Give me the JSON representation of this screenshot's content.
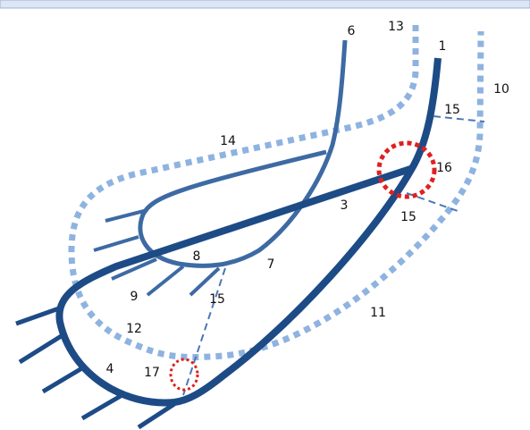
{
  "labels": [
    "6",
    "13",
    "1",
    "10",
    "15",
    "14",
    "16",
    "3",
    "15",
    "8",
    "7",
    "9",
    "15",
    "12",
    "11",
    "4",
    "17"
  ]
}
